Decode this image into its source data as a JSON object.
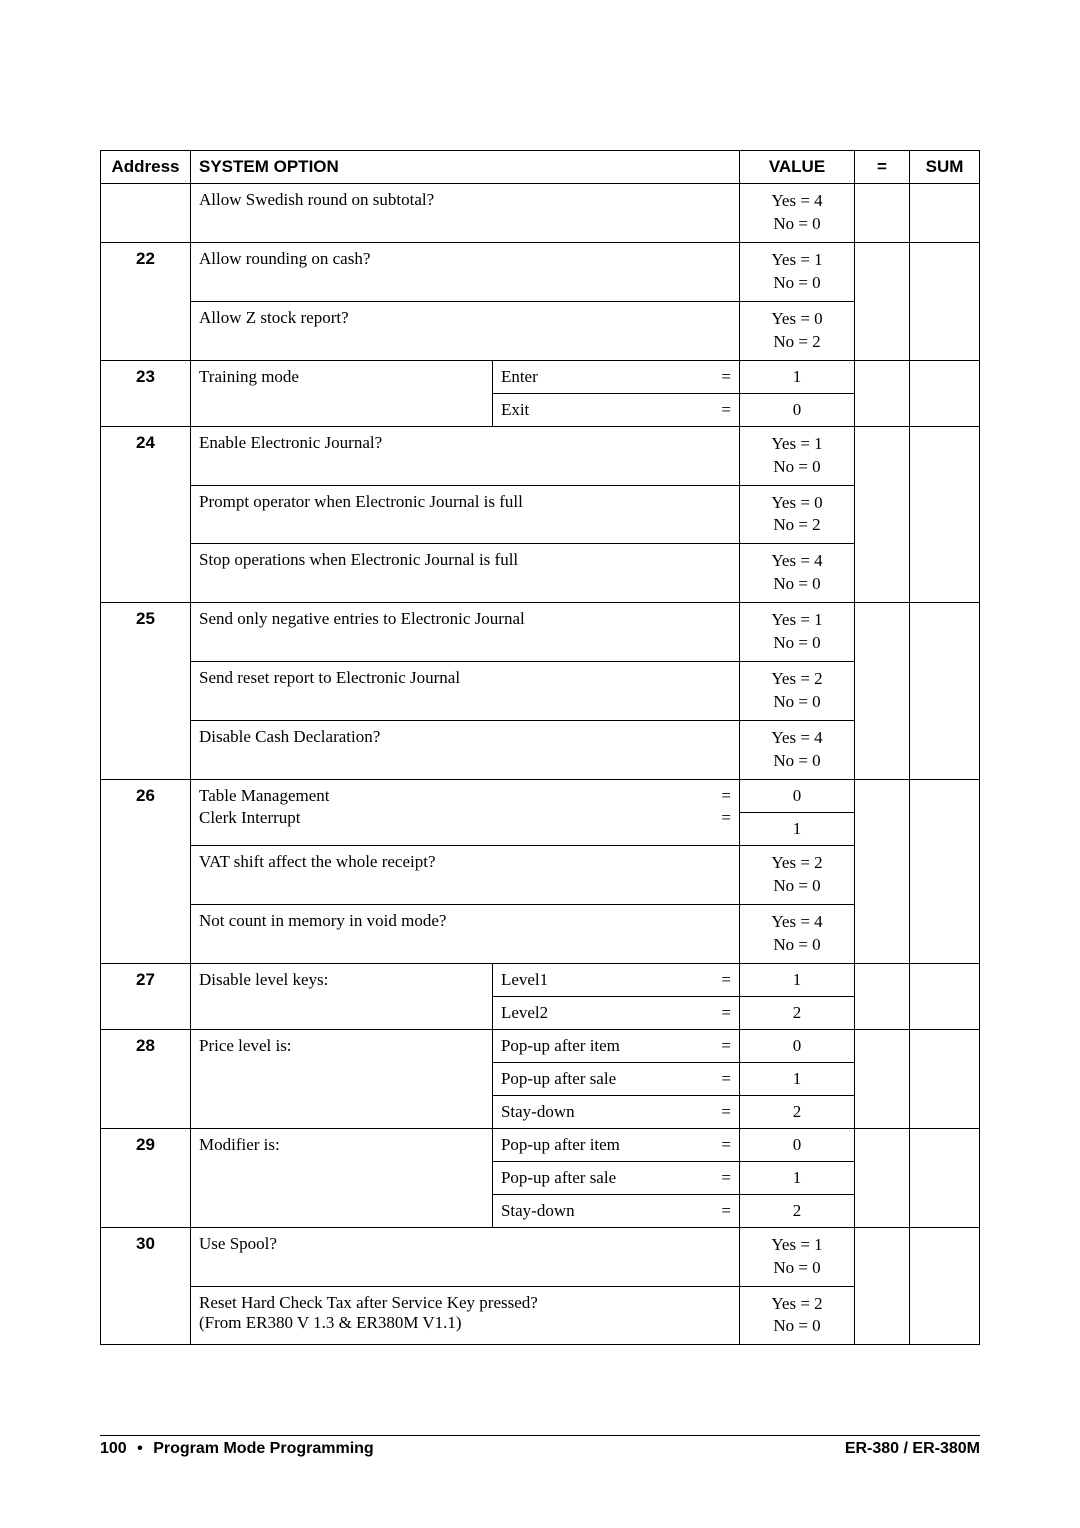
{
  "header": {
    "address": "Address",
    "system_option": "SYSTEM OPTION",
    "value": "VALUE",
    "eq": "=",
    "sum": "SUM"
  },
  "rows": {
    "r1": {
      "opt": "Allow Swedish round on subtotal?",
      "val": "Yes = 4\nNo = 0"
    },
    "r22a": {
      "addr": "22",
      "opt": "Allow rounding on cash?",
      "val": "Yes = 1\nNo = 0"
    },
    "r22b": {
      "opt": "Allow Z stock report?",
      "val": "Yes = 0\nNo = 2"
    },
    "r23a": {
      "addr": "23",
      "opt": "Training mode",
      "sub": "Enter",
      "eq": "=",
      "val": "1"
    },
    "r23b": {
      "sub": "Exit",
      "eq": "=",
      "val": "0"
    },
    "r24a": {
      "addr": "24",
      "opt": "Enable Electronic Journal?",
      "val": "Yes = 1\nNo = 0"
    },
    "r24b": {
      "opt": "Prompt operator when Electronic Journal is full",
      "val": "Yes = 0\nNo = 2"
    },
    "r24c": {
      "opt": "Stop operations when Electronic Journal is full",
      "val": "Yes = 4\nNo = 0"
    },
    "r25a": {
      "addr": "25",
      "opt": "Send only negative entries to Electronic Journal",
      "val": "Yes = 1\nNo = 0"
    },
    "r25b": {
      "opt": "Send reset report to Electronic Journal",
      "val": "Yes = 2\nNo = 0"
    },
    "r25c": {
      "opt": "Disable Cash Declaration?",
      "val": "Yes = 4\nNo = 0"
    },
    "r26a": {
      "addr": "26",
      "opt1": "Table Management",
      "opt2": "Clerk Interrupt",
      "eq": "=",
      "val1": "0",
      "val2": "1"
    },
    "r26b": {
      "opt": "VAT shift affect the whole receipt?",
      "val": "Yes = 2\nNo = 0"
    },
    "r26c": {
      "opt": "Not count in memory in void mode?",
      "val": "Yes = 4\nNo = 0"
    },
    "r27a": {
      "addr": "27",
      "opt": "Disable level keys:",
      "sub": "Level1",
      "eq": "=",
      "val": "1"
    },
    "r27b": {
      "sub": "Level2",
      "eq": "=",
      "val": "2"
    },
    "r28a": {
      "addr": "28",
      "opt": "Price level is:",
      "sub": "Pop-up after item",
      "eq": "=",
      "val": "0"
    },
    "r28b": {
      "sub": "Pop-up after sale",
      "eq": "=",
      "val": "1"
    },
    "r28c": {
      "sub": "Stay-down",
      "eq": "=",
      "val": "2"
    },
    "r29a": {
      "addr": "29",
      "opt": "Modifier is:",
      "sub": "Pop-up after item",
      "eq": "=",
      "val": "0"
    },
    "r29b": {
      "sub": "Pop-up after sale",
      "eq": "=",
      "val": "1"
    },
    "r29c": {
      "sub": "Stay-down",
      "eq": "=",
      "val": "2"
    },
    "r30a": {
      "addr": "30",
      "opt": "Use Spool?",
      "val": "Yes = 1\nNo = 0"
    },
    "r30b": {
      "opt": "Reset Hard Check Tax after Service Key pressed?\n (From ER380 V 1.3 & ER380M V1.1)",
      "val": "Yes = 2\nNo = 0"
    }
  },
  "footer": {
    "page": "100",
    "title": "Program Mode Programming",
    "product": "ER-380 / ER-380M"
  }
}
